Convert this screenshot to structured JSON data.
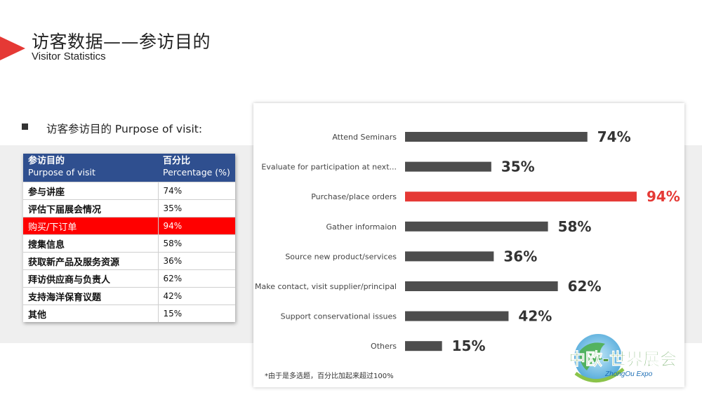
{
  "header": {
    "title_cn": "访客数据——参访目的",
    "title_en": "Visitor Statistics"
  },
  "section": {
    "bullet_text": "访客参访目的 Purpose of visit:"
  },
  "table": {
    "header": {
      "col1_cn": "参访目的",
      "col1_en": "Purpose of visit",
      "col2_cn": "百分比",
      "col2_en": "Percentage (%)"
    },
    "rows": [
      {
        "purpose": "参与讲座",
        "pct": "74%"
      },
      {
        "purpose": "评估下届展会情况",
        "pct": "35%"
      },
      {
        "purpose": "购买/下订单",
        "pct": "94%"
      },
      {
        "purpose": "搜集信息",
        "pct": "58%"
      },
      {
        "purpose": "获取新产品及服务资源",
        "pct": "36%"
      },
      {
        "purpose": "拜访供应商与负责人",
        "pct": "62%"
      },
      {
        "purpose": "支持海洋保育议题",
        "pct": "42%"
      },
      {
        "purpose": "其他",
        "pct": "15%"
      }
    ],
    "highlight_color": "#ff0000"
  },
  "chart_data": {
    "type": "bar",
    "orientation": "horizontal",
    "categories": [
      "Attend Seminars",
      "Evaluate for participation at next...",
      "Purchase/place orders",
      "Gather informaion",
      "Source new product/services",
      "Make contact, visit supplier/principal",
      "Support conservational issues",
      "Others"
    ],
    "values": [
      74,
      35,
      94,
      58,
      36,
      62,
      42,
      15
    ],
    "value_labels": [
      "74%",
      "35%",
      "94%",
      "58%",
      "36%",
      "62%",
      "42%",
      "15%"
    ],
    "highlight_index": 2,
    "bar_color": "#4d4d4d",
    "highlight_color": "#e53935",
    "xlim": [
      0,
      100
    ],
    "grid": false,
    "title": "",
    "xlabel": "",
    "ylabel": ""
  },
  "footnote": "*由于是多选题，百分比加起来超过100%",
  "logo": {
    "text_cn": "中欧-世界展会",
    "text_en": "ZhongOu Expo"
  }
}
